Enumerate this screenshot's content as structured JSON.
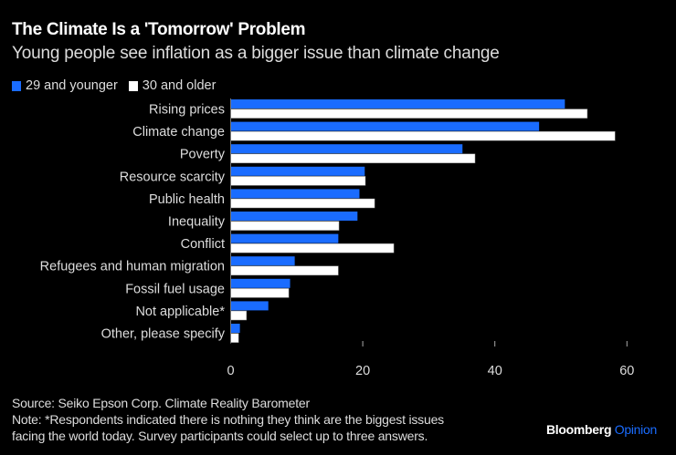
{
  "header": {
    "title": "The Climate Is a 'Tomorrow' Problem",
    "subtitle": "Young people see inflation as a bigger issue than climate change"
  },
  "legend": [
    {
      "label": "29 and younger",
      "color": "#1a6cff"
    },
    {
      "label": "30 and older",
      "color": "#ffffff"
    }
  ],
  "footer": {
    "source": "Source: Seiko Epson Corp. Climate Reality Barometer",
    "note_line1": "Note: *Respondents indicated there is nothing they think are the biggest issues",
    "note_line2": "facing the world today. Survey participants could select up to three answers."
  },
  "brand": {
    "part1": "Bloomberg",
    "part2": "Opinion"
  },
  "chart_data": {
    "type": "bar",
    "orientation": "horizontal",
    "title": "The Climate Is a 'Tomorrow' Problem",
    "subtitle": "Young people see inflation as a bigger issue than climate change",
    "xlabel": "",
    "ylabel": "",
    "xlim": [
      0,
      62
    ],
    "xticks": [
      0,
      20,
      40,
      60
    ],
    "grid": false,
    "legend_position": "top-left",
    "categories": [
      "Rising prices",
      "Climate change",
      "Poverty",
      "Resource scarcity",
      "Public health",
      "Inequality",
      "Conflict",
      "Refugees and human migration",
      "Fossil fuel usage",
      "Not applicable*",
      "Other, please specify"
    ],
    "series": [
      {
        "name": "29 and younger",
        "color": "#1a6cff",
        "values": [
          50.6,
          46.7,
          35.1,
          20.3,
          19.5,
          19.2,
          16.3,
          9.7,
          9.0,
          5.7,
          1.4
        ]
      },
      {
        "name": "30 and older",
        "color": "#ffffff",
        "values": [
          54.0,
          58.2,
          37.0,
          20.4,
          21.8,
          16.4,
          24.7,
          16.3,
          8.8,
          2.4,
          1.2
        ]
      }
    ]
  }
}
